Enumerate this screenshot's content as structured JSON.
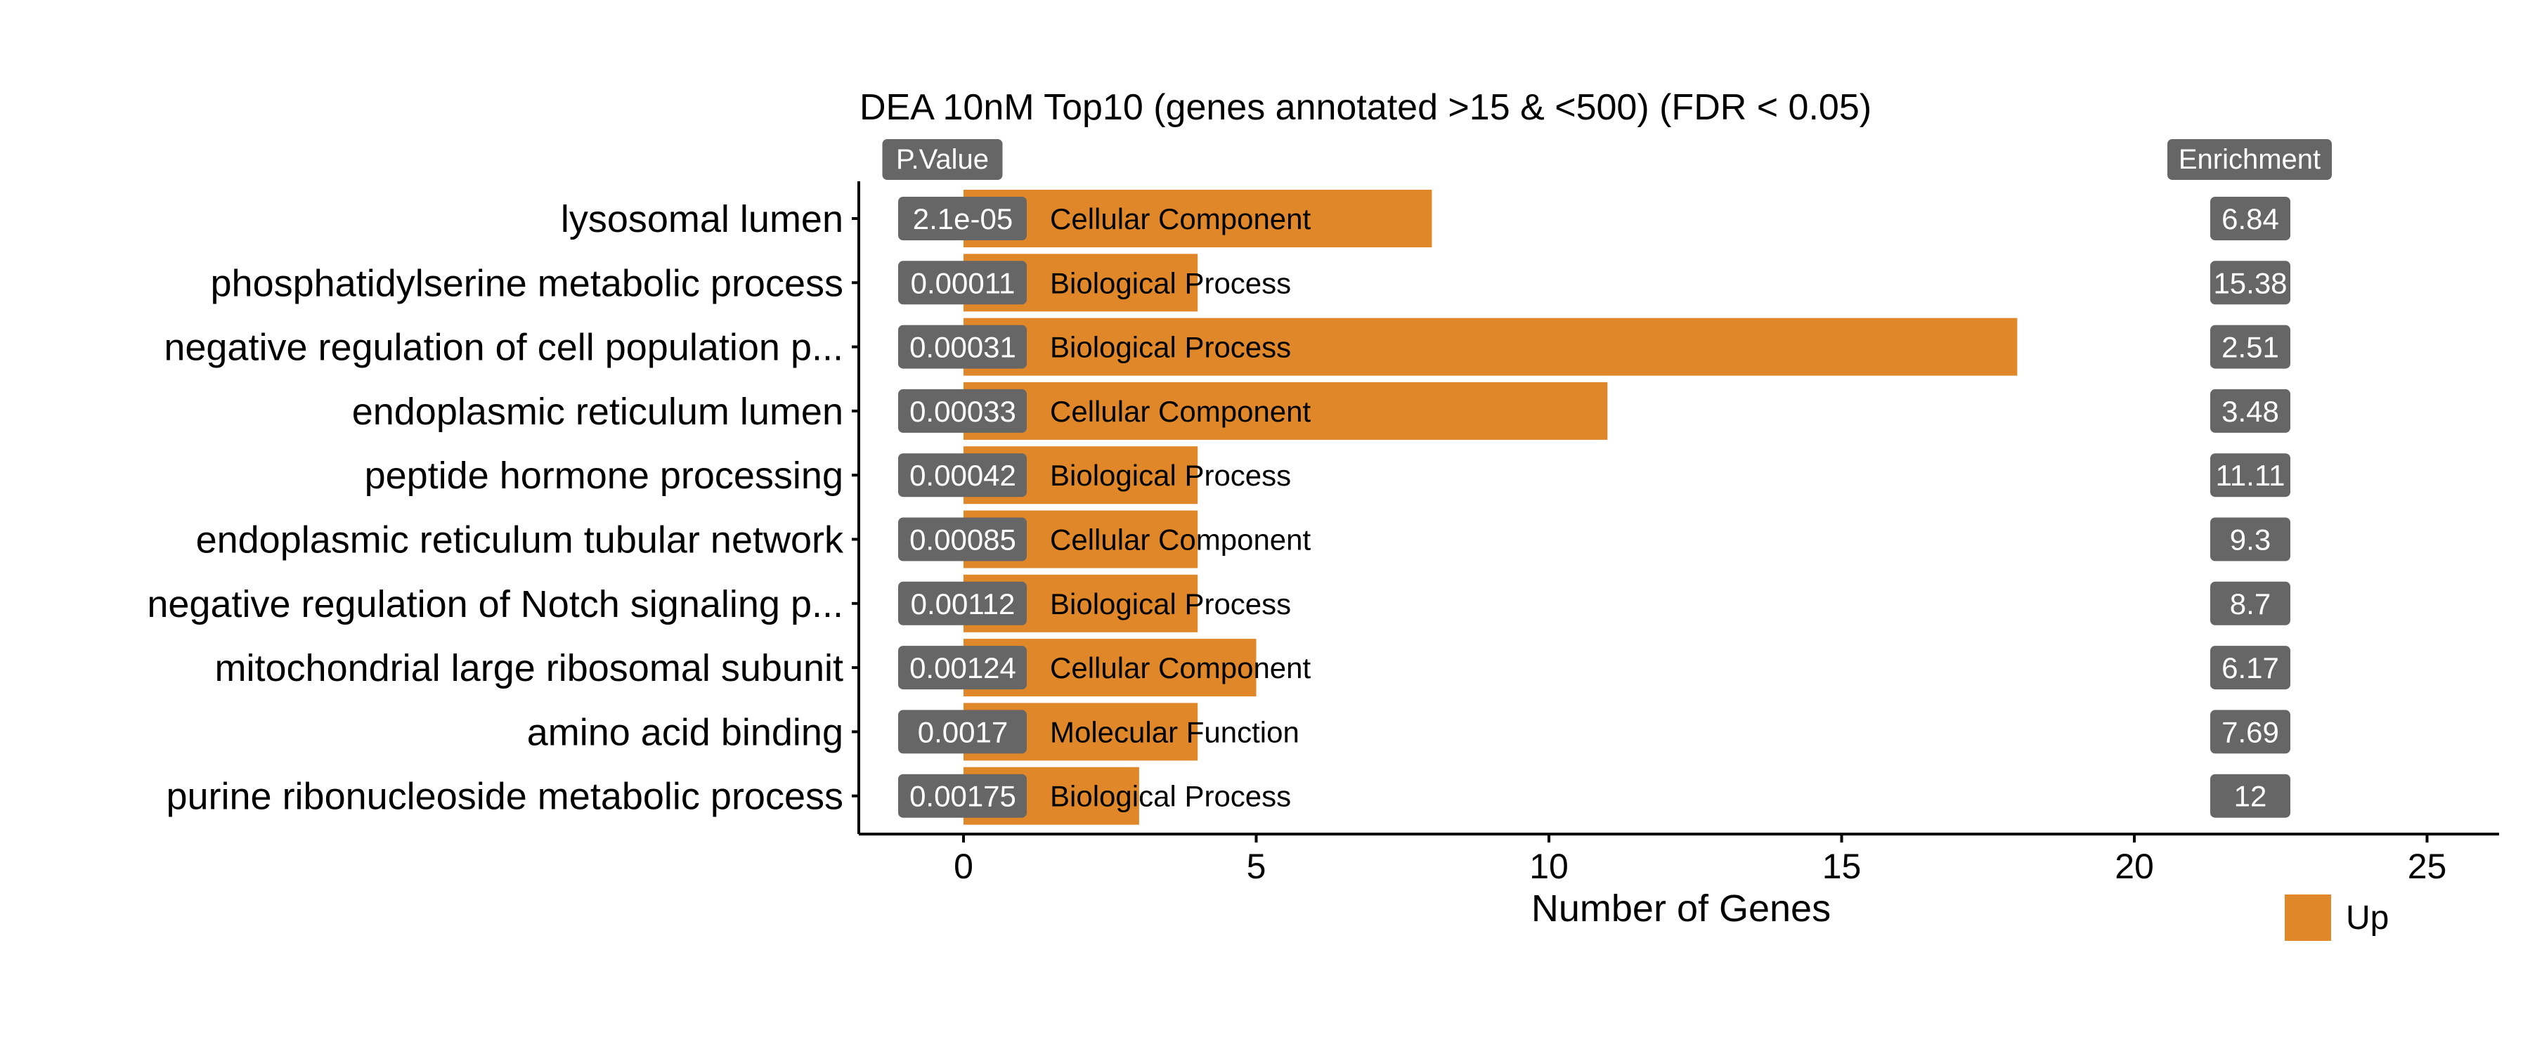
{
  "chart_data": {
    "type": "bar",
    "orientation": "horizontal",
    "title": "DEA 10nM Top10 (genes annotated >15 & <500) (FDR < 0.05)",
    "xlabel": "Number of Genes",
    "ylabel": "",
    "xlim": [
      0,
      25
    ],
    "xticks": [
      0,
      5,
      10,
      15,
      20,
      25
    ],
    "grid": false,
    "legend": {
      "position": "bottom-right",
      "entries": [
        {
          "label": "Up",
          "color": "#E0872A"
        }
      ]
    },
    "pvalue_header": "P.Value",
    "enrichment_header": "Enrichment",
    "bar_color": "#E0872A",
    "badge_color": "#666666",
    "categories": [
      "lysosomal lumen",
      "phosphatidylserine metabolic process",
      "negative regulation of cell population p...",
      "endoplasmic reticulum lumen",
      "peptide hormone processing",
      "endoplasmic reticulum tubular network",
      "negative regulation of Notch signaling p...",
      "mitochondrial large ribosomal subunit",
      "amino acid binding",
      "purine ribonucleoside metabolic process"
    ],
    "values": [
      8,
      4,
      18,
      11,
      4,
      4,
      4,
      5,
      4,
      3
    ],
    "pvalues": [
      "2.1e-05",
      "0.00011",
      "0.00031",
      "0.00033",
      "0.00042",
      "0.00085",
      "0.00112",
      "0.00124",
      "0.0017",
      "0.00175"
    ],
    "ontology": [
      "Cellular Component",
      "Biological Process",
      "Biological Process",
      "Cellular Component",
      "Biological Process",
      "Cellular Component",
      "Biological Process",
      "Cellular Component",
      "Molecular Function",
      "Biological Process"
    ],
    "enrichment": [
      "6.84",
      "15.38",
      "2.51",
      "3.48",
      "11.11",
      "9.3",
      "8.7",
      "6.17",
      "7.69",
      "12"
    ]
  }
}
